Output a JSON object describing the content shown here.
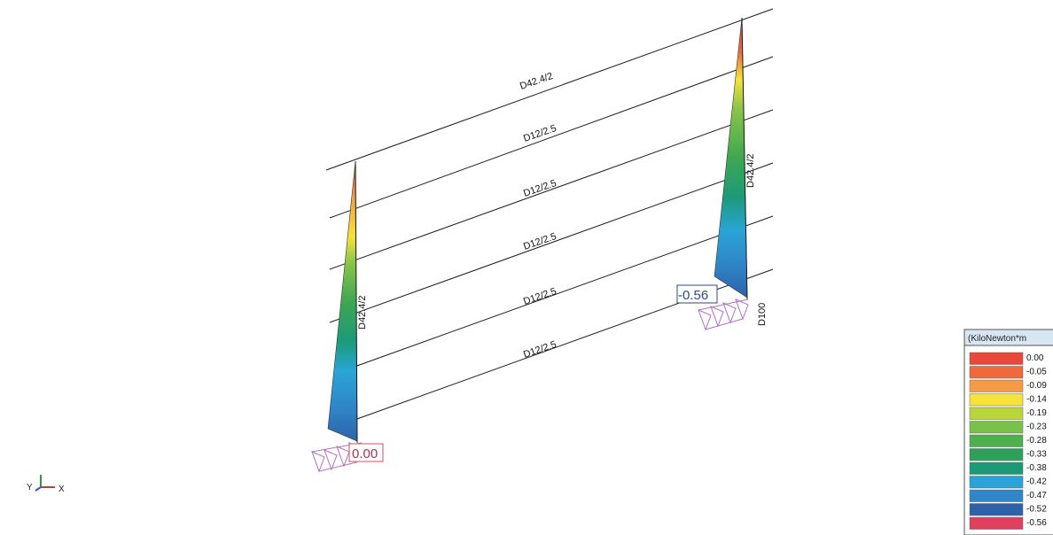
{
  "members": {
    "horizontals": [
      {
        "label": "D42.4/2"
      },
      {
        "label": "D12/2.5"
      },
      {
        "label": "D12/2.5"
      },
      {
        "label": "D12/2.5"
      },
      {
        "label": "D12/2.5"
      },
      {
        "label": "D12/2.5"
      }
    ],
    "left_column_label": "D42.4/2",
    "right_column_label": "D42.4/2",
    "right_base_label": "D100"
  },
  "values": {
    "left_base": "0.00",
    "right_base": "-0.56"
  },
  "axes": {
    "x": "X",
    "y": "Y"
  },
  "legend": {
    "title": "(KiloNewton*m",
    "entries": [
      {
        "value": "0.00",
        "color": "#e8473a"
      },
      {
        "value": "-0.05",
        "color": "#ee6a3c"
      },
      {
        "value": "-0.09",
        "color": "#f59a45"
      },
      {
        "value": "-0.14",
        "color": "#f5e23a"
      },
      {
        "value": "-0.19",
        "color": "#b8d63a"
      },
      {
        "value": "-0.23",
        "color": "#78c24a"
      },
      {
        "value": "-0.28",
        "color": "#4eb04c"
      },
      {
        "value": "-0.33",
        "color": "#2fa05a"
      },
      {
        "value": "-0.38",
        "color": "#1c9a78"
      },
      {
        "value": "-0.42",
        "color": "#2aa4d6"
      },
      {
        "value": "-0.47",
        "color": "#2f86c8"
      },
      {
        "value": "-0.52",
        "color": "#2d62a8"
      },
      {
        "value": "-0.56",
        "color": "#e04060"
      }
    ]
  },
  "colors": {
    "support": "#b070c8",
    "member": "#1a1a1a"
  }
}
